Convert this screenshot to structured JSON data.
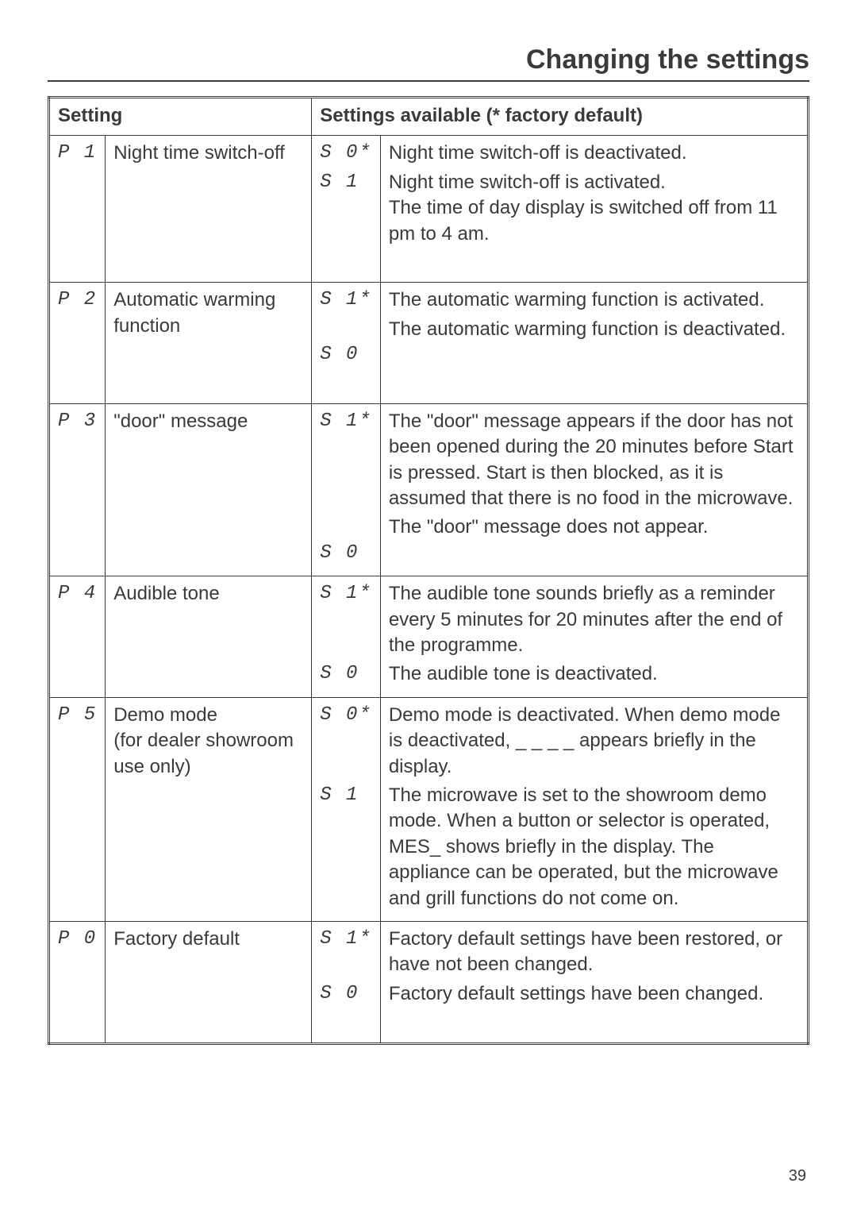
{
  "page": {
    "title": "Changing the settings",
    "page_number": "39"
  },
  "colors": {
    "text": "#3a3a3a",
    "border": "#3a3a3a",
    "background": "#ffffff"
  },
  "table": {
    "header": {
      "setting": "Setting",
      "available": "Settings available (* factory default)"
    },
    "rows": [
      {
        "code": "P 1",
        "name": "Night time switch-off",
        "options": [
          {
            "value": "S 0*",
            "desc": "Night time switch-off is deactivated."
          },
          {
            "value": "S 1",
            "desc": "Night time switch-off is activated.\nThe time of day display is switched off from 11 pm to 4 am."
          }
        ]
      },
      {
        "code": "P 2",
        "name": "Automatic warming function",
        "options": [
          {
            "value": "S 1*",
            "desc": "The automatic warming function is activated."
          },
          {
            "value": "S 0",
            "desc": "The automatic warming function is deactivated."
          }
        ]
      },
      {
        "code": "P 3",
        "name": "\"door\" message",
        "options": [
          {
            "value": "S 1*",
            "desc": "The \"door\" message appears if the door has not been opened during the 20 minutes before Start is pressed. Start is then blocked, as it is assumed that there is no food in the microwave."
          },
          {
            "value": "S 0",
            "desc": "The \"door\" message does not appear."
          }
        ]
      },
      {
        "code": "P 4",
        "name": "Audible tone",
        "options": [
          {
            "value": "S 1*",
            "desc": "The audible tone sounds briefly as a reminder every 5 minutes for 20 minutes after the end of the programme."
          },
          {
            "value": "S 0",
            "desc": "The audible tone is deactivated."
          }
        ]
      },
      {
        "code": "P 5",
        "name": "Demo mode\n(for dealer showroom use only)",
        "options": [
          {
            "value": "S 0*",
            "desc": "Demo mode is deactivated. When demo mode is deactivated, _ _ _ _ appears briefly in the display."
          },
          {
            "value": "S 1",
            "desc": "The microwave is set to the showroom demo mode. When a button or selector is operated, MES_ shows briefly in the display. The appliance can be operated, but the microwave and grill functions do not come on."
          }
        ]
      },
      {
        "code": "P 0",
        "name": "Factory default",
        "options": [
          {
            "value": "S 1*",
            "desc": "Factory default settings have been restored, or have not been changed."
          },
          {
            "value": "S 0",
            "desc": "Factory default settings have been changed."
          }
        ]
      }
    ]
  }
}
